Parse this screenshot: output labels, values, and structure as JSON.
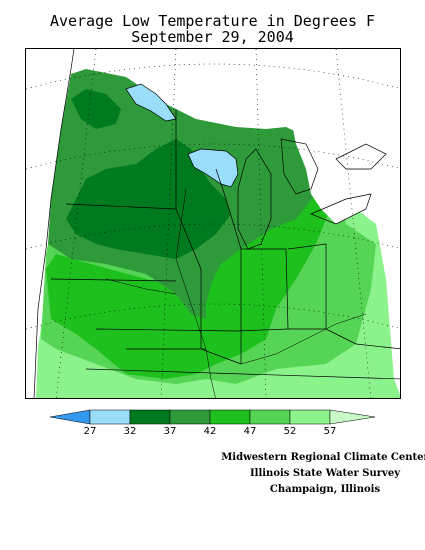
{
  "title": {
    "line1": "Average Low Temperature in Degrees F",
    "line2": "September 29, 2004"
  },
  "legend": {
    "labels": [
      "27",
      "32",
      "37",
      "42",
      "47",
      "52",
      "57"
    ],
    "colors": {
      "below_27": "#3399ee",
      "27_32": "#99ddf8",
      "32_37": "#007a1e",
      "37_42": "#2e9a3a",
      "42_47": "#1ec01e",
      "47_52": "#55d455",
      "above_52": "#8cf28c",
      "above_57": "#c8fac8"
    }
  },
  "map": {
    "colors": {
      "lake": "#99ddf8",
      "no_data": "#ffffff",
      "boundary": "#000000",
      "graticule": "#000000"
    }
  },
  "credits": {
    "line1": "Midwestern Regional Climate Center",
    "line2": "Illinois State Water Survey",
    "line3": "Champaign, Illinois"
  }
}
